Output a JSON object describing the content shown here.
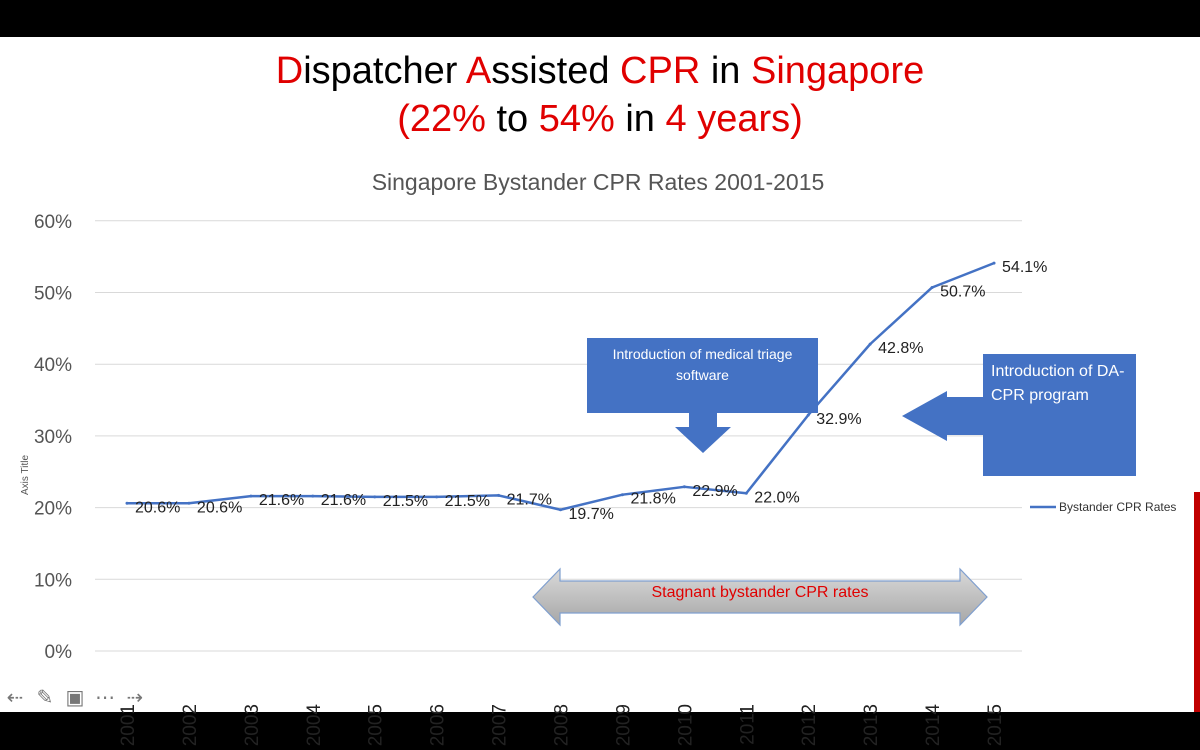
{
  "slide": {
    "headline_line1": [
      {
        "text": "D",
        "red": true
      },
      {
        "text": "ispatcher ",
        "red": false
      },
      {
        "text": "A",
        "red": true
      },
      {
        "text": "ssisted ",
        "red": false
      },
      {
        "text": "CPR",
        "red": true
      },
      {
        "text": " in ",
        "red": false
      },
      {
        "text": "Singapore",
        "red": true
      }
    ],
    "headline_line2": [
      {
        "text": "(22%",
        "red": true
      },
      {
        "text": " to ",
        "red": false
      },
      {
        "text": "54%",
        "red": true
      },
      {
        "text": " in ",
        "red": false
      },
      {
        "text": "4 years)",
        "red": true
      }
    ]
  },
  "annotations": {
    "triage": "Introduction of medical triage software",
    "dacpr": "Introduction of DA-CPR program",
    "stagnant": "Stagnant bystander CPR rates"
  },
  "colors": {
    "accent_red": "#e00000",
    "line_blue": "#4472c4",
    "arrow_gray": "#bfbfbf"
  },
  "toolbar": {
    "icons": [
      "arrow-left-icon",
      "pen-icon",
      "slide-icon",
      "more-icon",
      "arrow-right-icon"
    ]
  },
  "chart_data": {
    "type": "line",
    "title": "Singapore Bystander CPR Rates 2001-2015",
    "xlabel": "",
    "ylabel": "Axis Title",
    "categories": [
      "2001",
      "2002",
      "2003",
      "2004",
      "2005",
      "2006",
      "2007",
      "2008",
      "2009",
      "2010",
      "2011",
      "2012",
      "2013",
      "2014",
      "2015"
    ],
    "series": [
      {
        "name": "Bystander CPR Rates",
        "values": [
          20.6,
          20.6,
          21.6,
          21.6,
          21.5,
          21.5,
          21.7,
          19.7,
          21.8,
          22.9,
          22.0,
          32.9,
          42.8,
          50.7,
          54.1
        ],
        "labels": [
          "20.6%",
          "20.6%",
          "21.6%",
          "21.6%",
          "21.5%",
          "21.5%",
          "21.7%",
          "19.7%",
          "21.8%",
          "22.9%",
          "22.0%",
          "32.9%",
          "42.8%",
          "50.7%",
          "54.1%"
        ]
      }
    ],
    "ylim": [
      0,
      60
    ],
    "yticks": [
      0,
      10,
      20,
      30,
      40,
      50,
      60
    ],
    "ytick_labels": [
      "0%",
      "10%",
      "20%",
      "30%",
      "40%",
      "50%",
      "60%"
    ],
    "grid": true,
    "legend": "right"
  }
}
